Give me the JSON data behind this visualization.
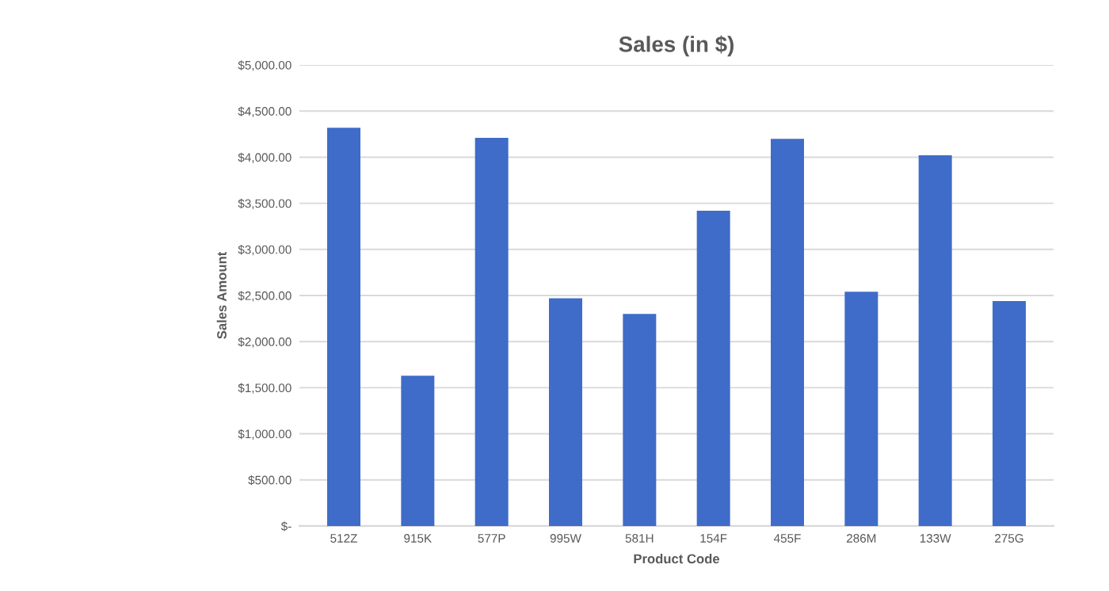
{
  "chart_data": {
    "type": "bar",
    "title": "Sales (in $)",
    "xlabel": "Product Code",
    "ylabel": "Sales Amount",
    "categories": [
      "512Z",
      "915K",
      "577P",
      "995W",
      "581H",
      "154F",
      "455F",
      "286M",
      "133W",
      "275G"
    ],
    "values": [
      4320,
      1630,
      4210,
      2470,
      2300,
      3420,
      4200,
      2540,
      4020,
      2440
    ],
    "color": "#3f6cc9",
    "ylim": [
      0,
      5000
    ],
    "yticks": [
      {
        "value": 0,
        "label": "$-"
      },
      {
        "value": 500,
        "label": "$500.00"
      },
      {
        "value": 1000,
        "label": "$1,000.00"
      },
      {
        "value": 1500,
        "label": "$1,500.00"
      },
      {
        "value": 2000,
        "label": "$2,000.00"
      },
      {
        "value": 2500,
        "label": "$2,500.00"
      },
      {
        "value": 3000,
        "label": "$3,000.00"
      },
      {
        "value": 3500,
        "label": "$3,500.00"
      },
      {
        "value": 4000,
        "label": "$4,000.00"
      },
      {
        "value": 4500,
        "label": "$4,500.00"
      },
      {
        "value": 5000,
        "label": "$5,000.00"
      }
    ],
    "grid": "y"
  }
}
